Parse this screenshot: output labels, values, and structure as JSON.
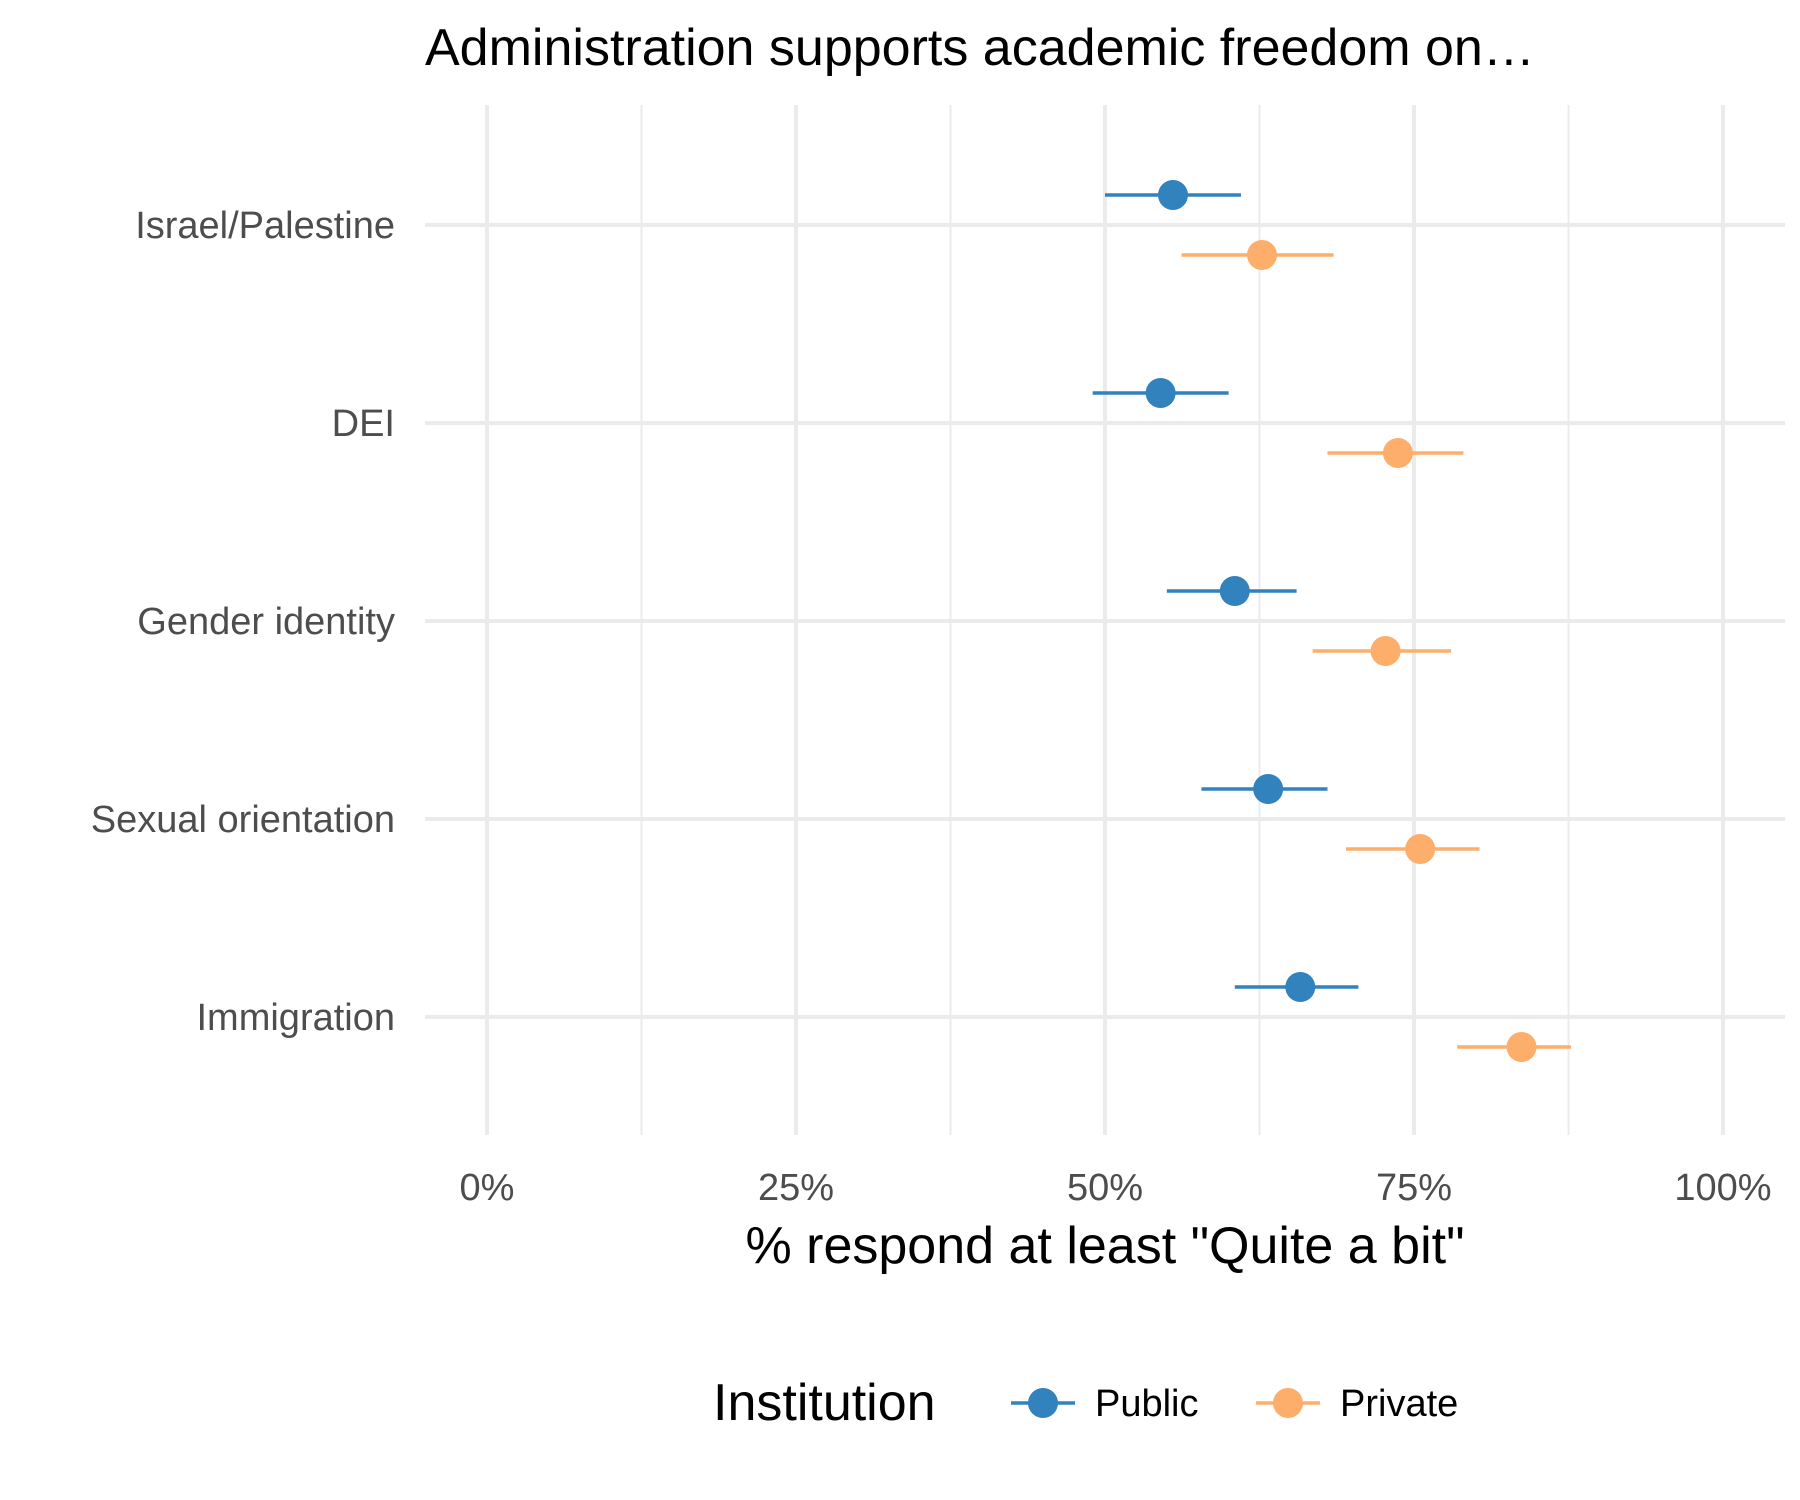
{
  "chart_data": {
    "type": "dot-errorbar",
    "title": "Administration supports academic freedom on…",
    "xlabel": "% respond at least \"Quite a bit\"",
    "ylabel": "",
    "xlim": [
      0,
      1
    ],
    "x_ticks": [
      {
        "value": 0,
        "label": "0%"
      },
      {
        "value": 0.25,
        "label": "25%"
      },
      {
        "value": 0.5,
        "label": "50%"
      },
      {
        "value": 0.75,
        "label": "75%"
      },
      {
        "value": 1.0,
        "label": "100%"
      }
    ],
    "categories": [
      "Israel/Palestine",
      "DEI",
      "Gender identity",
      "Sexual orientation",
      "Immigration"
    ],
    "series": [
      {
        "name": "Public",
        "color": "#3182bd",
        "values": [
          0.555,
          0.545,
          0.605,
          0.632,
          0.658
        ],
        "lower": [
          0.5,
          0.49,
          0.55,
          0.578,
          0.605
        ],
        "upper": [
          0.61,
          0.6,
          0.655,
          0.68,
          0.705
        ]
      },
      {
        "name": "Private",
        "color": "#fdae6b",
        "values": [
          0.627,
          0.737,
          0.727,
          0.755,
          0.837
        ],
        "lower": [
          0.562,
          0.68,
          0.668,
          0.695,
          0.785
        ],
        "upper": [
          0.685,
          0.79,
          0.78,
          0.803,
          0.877
        ]
      }
    ],
    "grid": true,
    "legend": {
      "title": "Institution",
      "position": "bottom"
    }
  }
}
